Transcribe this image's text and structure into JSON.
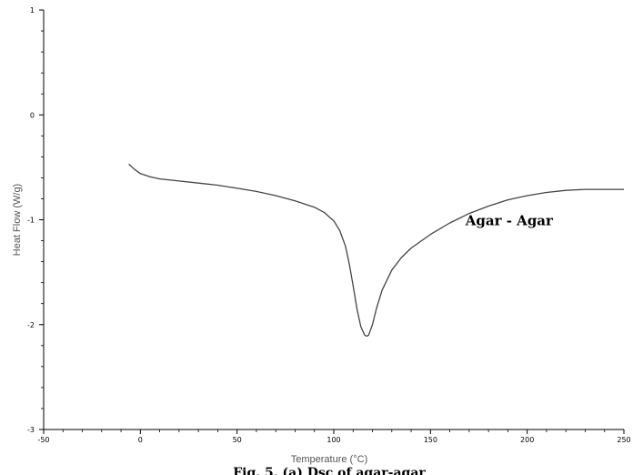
{
  "chart_data": {
    "type": "line",
    "title": "",
    "xlabel": "Temperature (°C)",
    "ylabel": "Heat Flow (W/g)",
    "xlim": [
      -50,
      250
    ],
    "ylim": [
      -3,
      1
    ],
    "x_ticks": [
      -50,
      0,
      50,
      100,
      150,
      200,
      250
    ],
    "y_ticks": [
      -3,
      -2,
      -1,
      0,
      1
    ],
    "x_tick_labels": [
      "-50",
      "0",
      "50",
      "100",
      "150",
      "200",
      "250"
    ],
    "y_tick_labels": [
      "-3",
      "-2",
      "-1",
      "0",
      "1"
    ],
    "grid": false,
    "series": [
      {
        "name": "Agar - Agar",
        "color": "#444444",
        "x": [
          -6,
          -3,
          0,
          5,
          10,
          20,
          30,
          40,
          50,
          60,
          70,
          80,
          90,
          95,
          100,
          103,
          106,
          108,
          110,
          112,
          114,
          116,
          117,
          118,
          120,
          122,
          125,
          130,
          135,
          140,
          150,
          160,
          170,
          180,
          190,
          200,
          210,
          220,
          230,
          240,
          250
        ],
        "y": [
          -0.47,
          -0.52,
          -0.56,
          -0.59,
          -0.61,
          -0.63,
          -0.65,
          -0.67,
          -0.7,
          -0.73,
          -0.77,
          -0.82,
          -0.88,
          -0.93,
          -1.01,
          -1.1,
          -1.25,
          -1.42,
          -1.63,
          -1.85,
          -2.02,
          -2.1,
          -2.11,
          -2.1,
          -2.0,
          -1.85,
          -1.67,
          -1.48,
          -1.36,
          -1.27,
          -1.14,
          -1.03,
          -0.94,
          -0.87,
          -0.81,
          -0.77,
          -0.74,
          -0.72,
          -0.71,
          -0.71,
          -0.71
        ]
      }
    ],
    "annotations": [
      {
        "text": "Agar - Agar",
        "x": 185,
        "y": -1.0
      }
    ]
  },
  "caption": "Fig. 5. (a) Dsc of agar-agar"
}
